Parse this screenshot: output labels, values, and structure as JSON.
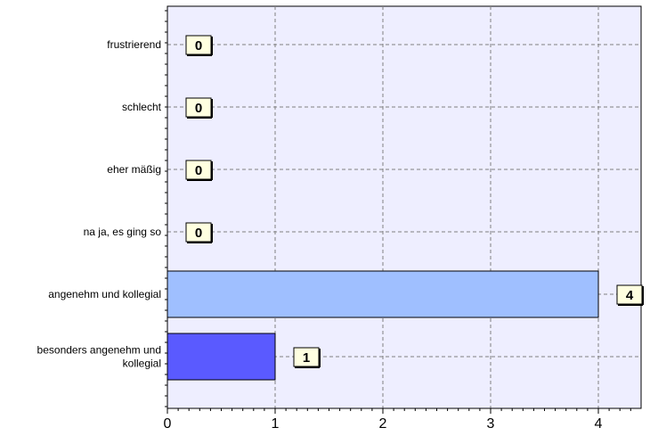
{
  "chart_data": {
    "type": "bar",
    "orientation": "horizontal",
    "categories": [
      "frustrierend",
      "schlecht",
      "eher mäßig",
      "na ja, es ging so",
      "angenehm und kollegial",
      "besonders angenehm und kollegial"
    ],
    "category_lines": [
      [
        "frustrierend"
      ],
      [
        "schlecht"
      ],
      [
        "eher mäßig"
      ],
      [
        "na ja, es ging so"
      ],
      [
        "angenehm und kollegial"
      ],
      [
        "besonders angenehm und",
        "kollegial"
      ]
    ],
    "values": [
      0,
      0,
      0,
      0,
      4,
      1
    ],
    "data_labels": [
      "0",
      "0",
      "0",
      "0",
      "4",
      "1"
    ],
    "bar_colors": [
      "#9fbfff",
      "#9fbfff",
      "#9fbfff",
      "#9fbfff",
      "#9fbfff",
      "#5a5aff"
    ],
    "x_ticks": [
      "0",
      "1",
      "2",
      "3",
      "4"
    ],
    "xlim": [
      0,
      4.4
    ],
    "grid": true,
    "title": "",
    "xlabel": "",
    "ylabel": "",
    "colors": {
      "plot_background": "#eeeeff",
      "grid": "#808080",
      "label_box": "#ffffe0"
    }
  }
}
